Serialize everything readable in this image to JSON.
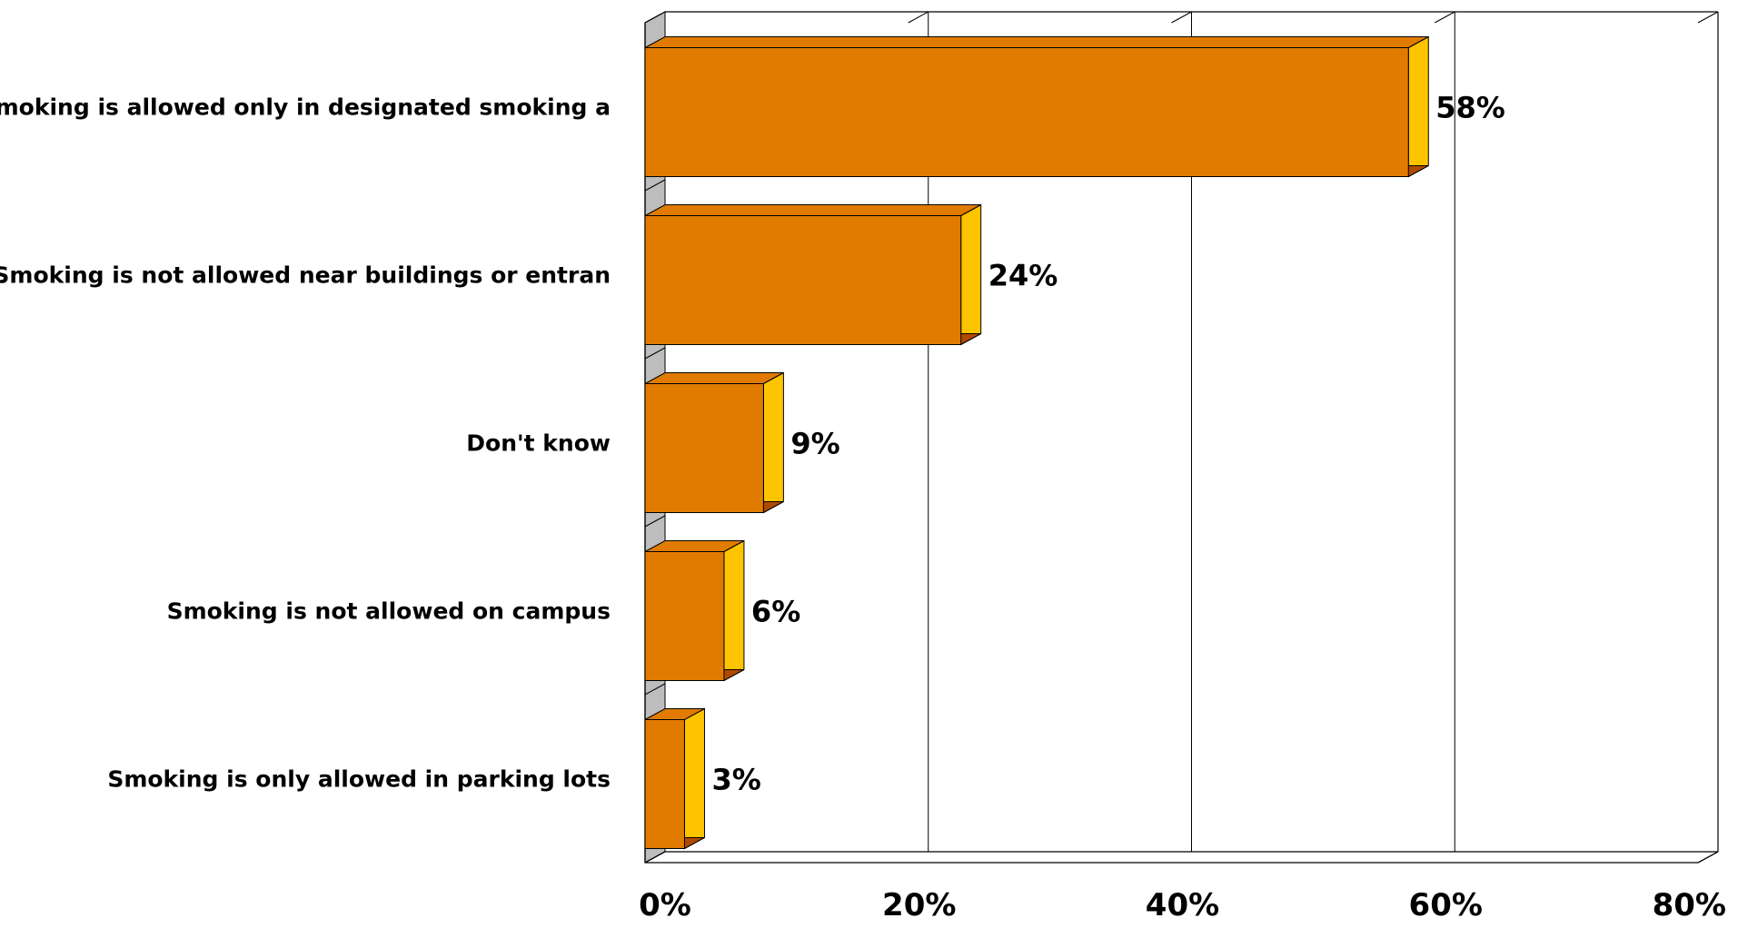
{
  "chart_data": {
    "type": "bar",
    "orientation": "horizontal",
    "style": "3d",
    "categories": [
      "Smoking is allowed only in designated smoking a",
      "Smoking is not allowed near buildings or entran",
      "Don't know",
      "Smoking is not allowed on campus",
      "Smoking is only allowed in parking lots"
    ],
    "values": [
      58,
      24,
      9,
      6,
      3
    ],
    "data_labels": [
      "58%",
      "24%",
      "9%",
      "6%",
      "3%"
    ],
    "xlim": [
      0,
      80
    ],
    "x_ticks": [
      0,
      20,
      40,
      60,
      80
    ],
    "x_tick_labels": [
      "0%",
      "20%",
      "40%",
      "60%",
      "80%"
    ],
    "grid": "vertical",
    "legend": "none",
    "title": "",
    "xlabel": "",
    "ylabel": "",
    "colors": {
      "bar_front": "#E07B00",
      "bar_side": "#FFC400",
      "bar_bottom": "#B04A00",
      "floor": "#BDBDBD",
      "gridline": "#000000",
      "text": "#000000"
    }
  }
}
